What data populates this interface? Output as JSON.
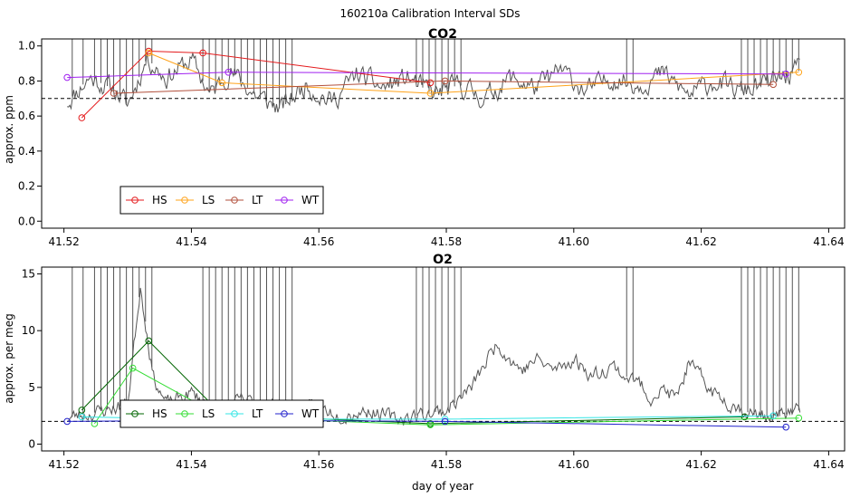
{
  "page_title": "160210a   Calibration Interval SDs",
  "chart_data": [
    {
      "type": "line",
      "title": "CO2",
      "xlabel": "",
      "ylabel": "approx. ppm",
      "xlim": [
        41.5165,
        41.6425
      ],
      "ylim": [
        -0.04,
        1.04
      ],
      "xticks": [
        41.52,
        41.54,
        41.56,
        41.58,
        41.6,
        41.62,
        41.64
      ],
      "xtick_labels": [
        "41.52",
        "41.54",
        "41.56",
        "41.58",
        "41.60",
        "41.62",
        "41.64"
      ],
      "yticks": [
        0.0,
        0.2,
        0.4,
        0.6,
        0.8,
        1.0
      ],
      "ytick_labels": [
        "0.0",
        "0.2",
        "0.4",
        "0.6",
        "0.8",
        "1.0"
      ],
      "threshold": 0.7,
      "trace": {
        "color": "#555555",
        "start": 41.5205,
        "end": 41.6355,
        "seed": 11,
        "anchors": [
          [
            41.5205,
            0.68
          ],
          [
            41.524,
            0.82
          ],
          [
            41.528,
            0.75
          ],
          [
            41.53,
            0.66
          ],
          [
            41.533,
            0.93
          ],
          [
            41.536,
            0.82
          ],
          [
            41.54,
            0.92
          ],
          [
            41.543,
            0.72
          ],
          [
            41.546,
            0.86
          ],
          [
            41.55,
            0.72
          ],
          [
            41.554,
            0.64
          ],
          [
            41.558,
            0.78
          ],
          [
            41.562,
            0.68
          ],
          [
            41.566,
            0.84
          ],
          [
            41.57,
            0.76
          ],
          [
            41.574,
            0.82
          ],
          [
            41.578,
            0.72
          ],
          [
            41.582,
            0.78
          ],
          [
            41.586,
            0.7
          ],
          [
            41.59,
            0.82
          ],
          [
            41.594,
            0.76
          ],
          [
            41.598,
            0.86
          ],
          [
            41.602,
            0.74
          ],
          [
            41.606,
            0.82
          ],
          [
            41.61,
            0.78
          ],
          [
            41.614,
            0.84
          ],
          [
            41.618,
            0.72
          ],
          [
            41.622,
            0.8
          ],
          [
            41.626,
            0.74
          ],
          [
            41.63,
            0.78
          ],
          [
            41.6355,
            0.86
          ]
        ],
        "noise": 0.05,
        "spikes": [
          41.5213,
          41.523,
          41.5248,
          41.5258,
          41.5268,
          41.5278,
          41.5288,
          41.5298,
          41.5308,
          41.5318,
          41.5328,
          41.5338,
          41.5418,
          41.5428,
          41.5438,
          41.5448,
          41.5458,
          41.5468,
          41.5478,
          41.5488,
          41.5498,
          41.5508,
          41.5518,
          41.5528,
          41.5538,
          41.5548,
          41.5558,
          41.5753,
          41.5763,
          41.5773,
          41.5783,
          41.5793,
          41.5803,
          41.5813,
          41.5823,
          41.6083,
          41.6093,
          41.6263,
          41.6273,
          41.6283,
          41.6293,
          41.6303,
          41.6313,
          41.6323,
          41.6333,
          41.6343,
          41.6353
        ]
      },
      "series": [
        {
          "name": "HS",
          "color": "#e41a1c",
          "points": [
            [
              41.5228,
              0.59
            ],
            [
              41.5333,
              0.97
            ],
            [
              41.5418,
              0.96
            ],
            [
              41.5775,
              0.79
            ]
          ]
        },
        {
          "name": "LS",
          "color": "#ffa31a",
          "points": [
            [
              41.5333,
              0.96
            ],
            [
              41.5448,
              0.79
            ],
            [
              41.5775,
              0.73
            ],
            [
              41.6353,
              0.85
            ]
          ]
        },
        {
          "name": "LT",
          "color": "#b2503c",
          "points": [
            [
              41.5278,
              0.73
            ],
            [
              41.5798,
              0.8
            ],
            [
              41.6313,
              0.78
            ]
          ]
        },
        {
          "name": "WT",
          "color": "#a020f0",
          "points": [
            [
              41.5205,
              0.82
            ],
            [
              41.5458,
              0.85
            ],
            [
              41.6333,
              0.84
            ]
          ]
        }
      ]
    },
    {
      "type": "line",
      "title": "O2",
      "xlabel": "day of year",
      "ylabel": "approx. per meg",
      "xlim": [
        41.5165,
        41.6425
      ],
      "ylim": [
        -0.6,
        15.6
      ],
      "xticks": [
        41.52,
        41.54,
        41.56,
        41.58,
        41.6,
        41.62,
        41.64
      ],
      "xtick_labels": [
        "41.52",
        "41.54",
        "41.56",
        "41.58",
        "41.60",
        "41.62",
        "41.64"
      ],
      "yticks": [
        0,
        5,
        10,
        15
      ],
      "ytick_labels": [
        "0",
        "5",
        "10",
        "15"
      ],
      "threshold": 2.0,
      "trace": {
        "color": "#555555",
        "start": 41.5205,
        "end": 41.6355,
        "seed": 23,
        "anchors": [
          [
            41.5205,
            2.3
          ],
          [
            41.525,
            2.8
          ],
          [
            41.53,
            3.5
          ],
          [
            41.532,
            14.0
          ],
          [
            41.534,
            6.0
          ],
          [
            41.536,
            3.5
          ],
          [
            41.54,
            4.5
          ],
          [
            41.544,
            3.0
          ],
          [
            41.548,
            3.8
          ],
          [
            41.552,
            3.5
          ],
          [
            41.556,
            2.8
          ],
          [
            41.56,
            3.2
          ],
          [
            41.564,
            2.6
          ],
          [
            41.568,
            3.0
          ],
          [
            41.572,
            2.2
          ],
          [
            41.576,
            2.6
          ],
          [
            41.58,
            3.0
          ],
          [
            41.584,
            5.0
          ],
          [
            41.586,
            7.0
          ],
          [
            41.588,
            9.0
          ],
          [
            41.59,
            7.5
          ],
          [
            41.592,
            6.5
          ],
          [
            41.594,
            7.5
          ],
          [
            41.597,
            6.5
          ],
          [
            41.6,
            7.5
          ],
          [
            41.603,
            6.0
          ],
          [
            41.606,
            7.0
          ],
          [
            41.608,
            6.0
          ],
          [
            41.61,
            5.5
          ],
          [
            41.612,
            4.2
          ],
          [
            41.614,
            4.8
          ],
          [
            41.616,
            4.0
          ],
          [
            41.618,
            7.0
          ],
          [
            41.62,
            5.8
          ],
          [
            41.622,
            4.5
          ],
          [
            41.625,
            3.5
          ],
          [
            41.628,
            2.6
          ],
          [
            41.632,
            2.4
          ],
          [
            41.6355,
            3.0
          ]
        ],
        "noise": 0.55,
        "spikes": [
          41.5213,
          41.523,
          41.5248,
          41.5258,
          41.5268,
          41.5278,
          41.5288,
          41.5298,
          41.5308,
          41.5318,
          41.5328,
          41.5338,
          41.5418,
          41.5428,
          41.5438,
          41.5448,
          41.5458,
          41.5468,
          41.5478,
          41.5488,
          41.5498,
          41.5508,
          41.5518,
          41.5528,
          41.5538,
          41.5548,
          41.5558,
          41.5753,
          41.5763,
          41.5773,
          41.5783,
          41.5793,
          41.5803,
          41.5813,
          41.5823,
          41.6083,
          41.6093,
          41.6263,
          41.6273,
          41.6283,
          41.6293,
          41.6303,
          41.6313,
          41.6323,
          41.6333,
          41.6343,
          41.6353
        ]
      },
      "series": [
        {
          "name": "HS",
          "color": "#006400",
          "points": [
            [
              41.5228,
              3.0
            ],
            [
              41.5333,
              9.1
            ],
            [
              41.5448,
              2.6
            ],
            [
              41.5775,
              1.8
            ],
            [
              41.6268,
              2.4
            ]
          ]
        },
        {
          "name": "LS",
          "color": "#33dd33",
          "points": [
            [
              41.5248,
              1.8
            ],
            [
              41.5308,
              6.7
            ],
            [
              41.5448,
              2.4
            ],
            [
              41.5775,
              1.7
            ],
            [
              41.6353,
              2.3
            ]
          ]
        },
        {
          "name": "LT",
          "color": "#33e5e5",
          "points": [
            [
              41.5228,
              2.4
            ],
            [
              41.5418,
              2.2
            ],
            [
              41.5798,
              2.2
            ],
            [
              41.6313,
              2.5
            ]
          ]
        },
        {
          "name": "WT",
          "color": "#2222cc",
          "points": [
            [
              41.5205,
              2.0
            ],
            [
              41.5458,
              2.1
            ],
            [
              41.5798,
              2.0
            ],
            [
              41.6333,
              1.5
            ]
          ]
        }
      ]
    }
  ]
}
